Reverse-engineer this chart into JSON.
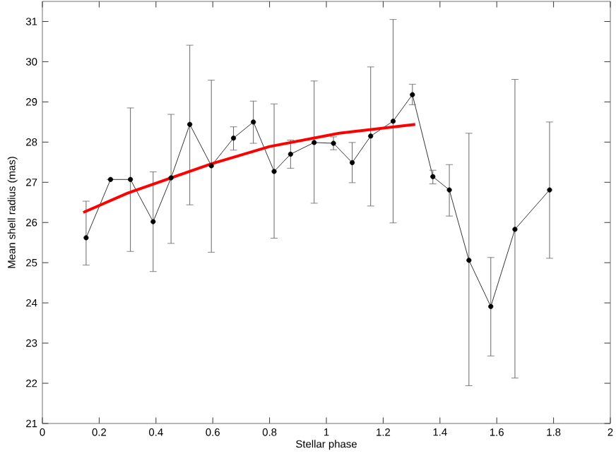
{
  "chart_data": {
    "type": "line",
    "xlabel": "Stellar phase",
    "ylabel": "Mean shell radius (mas)",
    "xlim": [
      0,
      2
    ],
    "ylim": [
      21,
      31.5
    ],
    "xticks": [
      0,
      0.2,
      0.4,
      0.6,
      0.8,
      1,
      1.2,
      1.4,
      1.6,
      1.8,
      2
    ],
    "yticks": [
      21,
      22,
      23,
      24,
      25,
      26,
      27,
      28,
      29,
      30,
      31
    ],
    "series": [
      {
        "color": "#000000",
        "marker": "circle",
        "x": [
          0.154,
          0.24,
          0.31,
          0.39,
          0.453,
          0.519,
          0.595,
          0.673,
          0.743,
          0.816,
          0.874,
          0.957,
          1.025,
          1.091,
          1.156,
          1.235,
          1.303,
          1.375,
          1.433,
          1.502,
          1.579,
          1.664,
          1.786
        ],
        "values": [
          25.62,
          27.07,
          27.07,
          26.02,
          27.11,
          28.44,
          27.41,
          28.1,
          28.5,
          27.27,
          27.7,
          27.99,
          27.97,
          27.49,
          28.15,
          28.52,
          29.18,
          27.14,
          26.81,
          25.06,
          23.91,
          25.83,
          26.81
        ],
        "errors": [
          [
            24.94,
            26.53
          ],
          null,
          [
            25.28,
            28.85
          ],
          [
            24.78,
            27.26
          ],
          [
            25.48,
            28.69
          ],
          [
            26.44,
            30.41
          ],
          [
            25.26,
            29.54
          ],
          [
            27.8,
            28.38
          ],
          [
            27.97,
            29.02
          ],
          [
            25.61,
            28.95
          ],
          [
            27.35,
            28.05
          ],
          [
            26.48,
            29.52
          ],
          [
            27.81,
            28.13
          ],
          [
            26.99,
            27.99
          ],
          [
            26.41,
            29.87
          ],
          [
            25.99,
            31.05
          ],
          [
            28.93,
            29.44
          ],
          [
            26.96,
            27.3
          ],
          [
            26.16,
            27.44
          ],
          [
            21.94,
            28.22
          ],
          [
            22.68,
            25.13
          ],
          [
            22.13,
            29.56
          ],
          [
            25.11,
            28.5
          ]
        ]
      },
      {
        "color": "#ff0000",
        "marker": "none",
        "x": [
          0.144,
          0.3,
          0.595,
          0.8,
          1.045,
          1.313
        ],
        "values": [
          26.25,
          26.73,
          27.46,
          27.89,
          28.22,
          28.44
        ]
      }
    ]
  }
}
